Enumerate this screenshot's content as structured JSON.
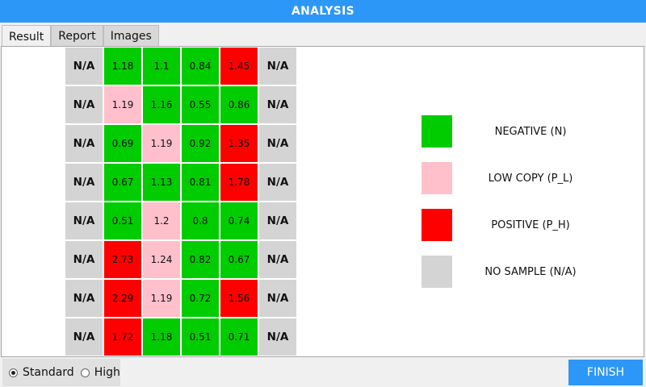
{
  "title": "ANALYSIS",
  "tabs": [
    {
      "label": "Result",
      "active": true
    },
    {
      "label": "Report",
      "active": false
    },
    {
      "label": "Images",
      "active": false
    }
  ],
  "grid": [
    [
      {
        "v": "N/A",
        "s": "na"
      },
      {
        "v": "1.18",
        "s": "N"
      },
      {
        "v": "1.1",
        "s": "N"
      },
      {
        "v": "0.84",
        "s": "N"
      },
      {
        "v": "1.45",
        "s": "P_H"
      },
      {
        "v": "N/A",
        "s": "na"
      }
    ],
    [
      {
        "v": "N/A",
        "s": "na"
      },
      {
        "v": "1.19",
        "s": "P_L"
      },
      {
        "v": "1.16",
        "s": "N"
      },
      {
        "v": "0.55",
        "s": "N"
      },
      {
        "v": "0.86",
        "s": "N"
      },
      {
        "v": "N/A",
        "s": "na"
      }
    ],
    [
      {
        "v": "N/A",
        "s": "na"
      },
      {
        "v": "0.69",
        "s": "N"
      },
      {
        "v": "1.19",
        "s": "P_L"
      },
      {
        "v": "0.92",
        "s": "N"
      },
      {
        "v": "1.35",
        "s": "P_H"
      },
      {
        "v": "N/A",
        "s": "na"
      }
    ],
    [
      {
        "v": "N/A",
        "s": "na"
      },
      {
        "v": "0.67",
        "s": "N"
      },
      {
        "v": "1.13",
        "s": "N"
      },
      {
        "v": "0.81",
        "s": "N"
      },
      {
        "v": "1.78",
        "s": "P_H"
      },
      {
        "v": "N/A",
        "s": "na"
      }
    ],
    [
      {
        "v": "N/A",
        "s": "na"
      },
      {
        "v": "0.51",
        "s": "N"
      },
      {
        "v": "1.2",
        "s": "P_L"
      },
      {
        "v": "0.8",
        "s": "N"
      },
      {
        "v": "0.74",
        "s": "N"
      },
      {
        "v": "N/A",
        "s": "na"
      }
    ],
    [
      {
        "v": "N/A",
        "s": "na"
      },
      {
        "v": "2.73",
        "s": "P_H"
      },
      {
        "v": "1.24",
        "s": "P_L"
      },
      {
        "v": "0.82",
        "s": "N"
      },
      {
        "v": "0.67",
        "s": "N"
      },
      {
        "v": "N/A",
        "s": "na"
      }
    ],
    [
      {
        "v": "N/A",
        "s": "na"
      },
      {
        "v": "2.29",
        "s": "P_H"
      },
      {
        "v": "1.19",
        "s": "P_L"
      },
      {
        "v": "0.72",
        "s": "N"
      },
      {
        "v": "1.56",
        "s": "P_H"
      },
      {
        "v": "N/A",
        "s": "na"
      }
    ],
    [
      {
        "v": "N/A",
        "s": "na"
      },
      {
        "v": "1.72",
        "s": "P_H"
      },
      {
        "v": "1.18",
        "s": "N"
      },
      {
        "v": "0.51",
        "s": "N"
      },
      {
        "v": "0.71",
        "s": "N"
      },
      {
        "v": "N/A",
        "s": "na"
      }
    ]
  ],
  "legend": [
    {
      "label": "NEGATIVE (N)",
      "color": "#00cc00"
    },
    {
      "label": "LOW COPY (P_L)",
      "color": "#ffc0cb"
    },
    {
      "label": "POSITIVE (P_H)",
      "color": "#ff0000"
    },
    {
      "label": "NO SAMPLE (N/A)",
      "color": "#d4d4d4"
    }
  ],
  "mode": {
    "options": [
      {
        "label": "Standard",
        "selected": true
      },
      {
        "label": "High",
        "selected": false
      }
    ]
  },
  "finish_label": "FINISH"
}
